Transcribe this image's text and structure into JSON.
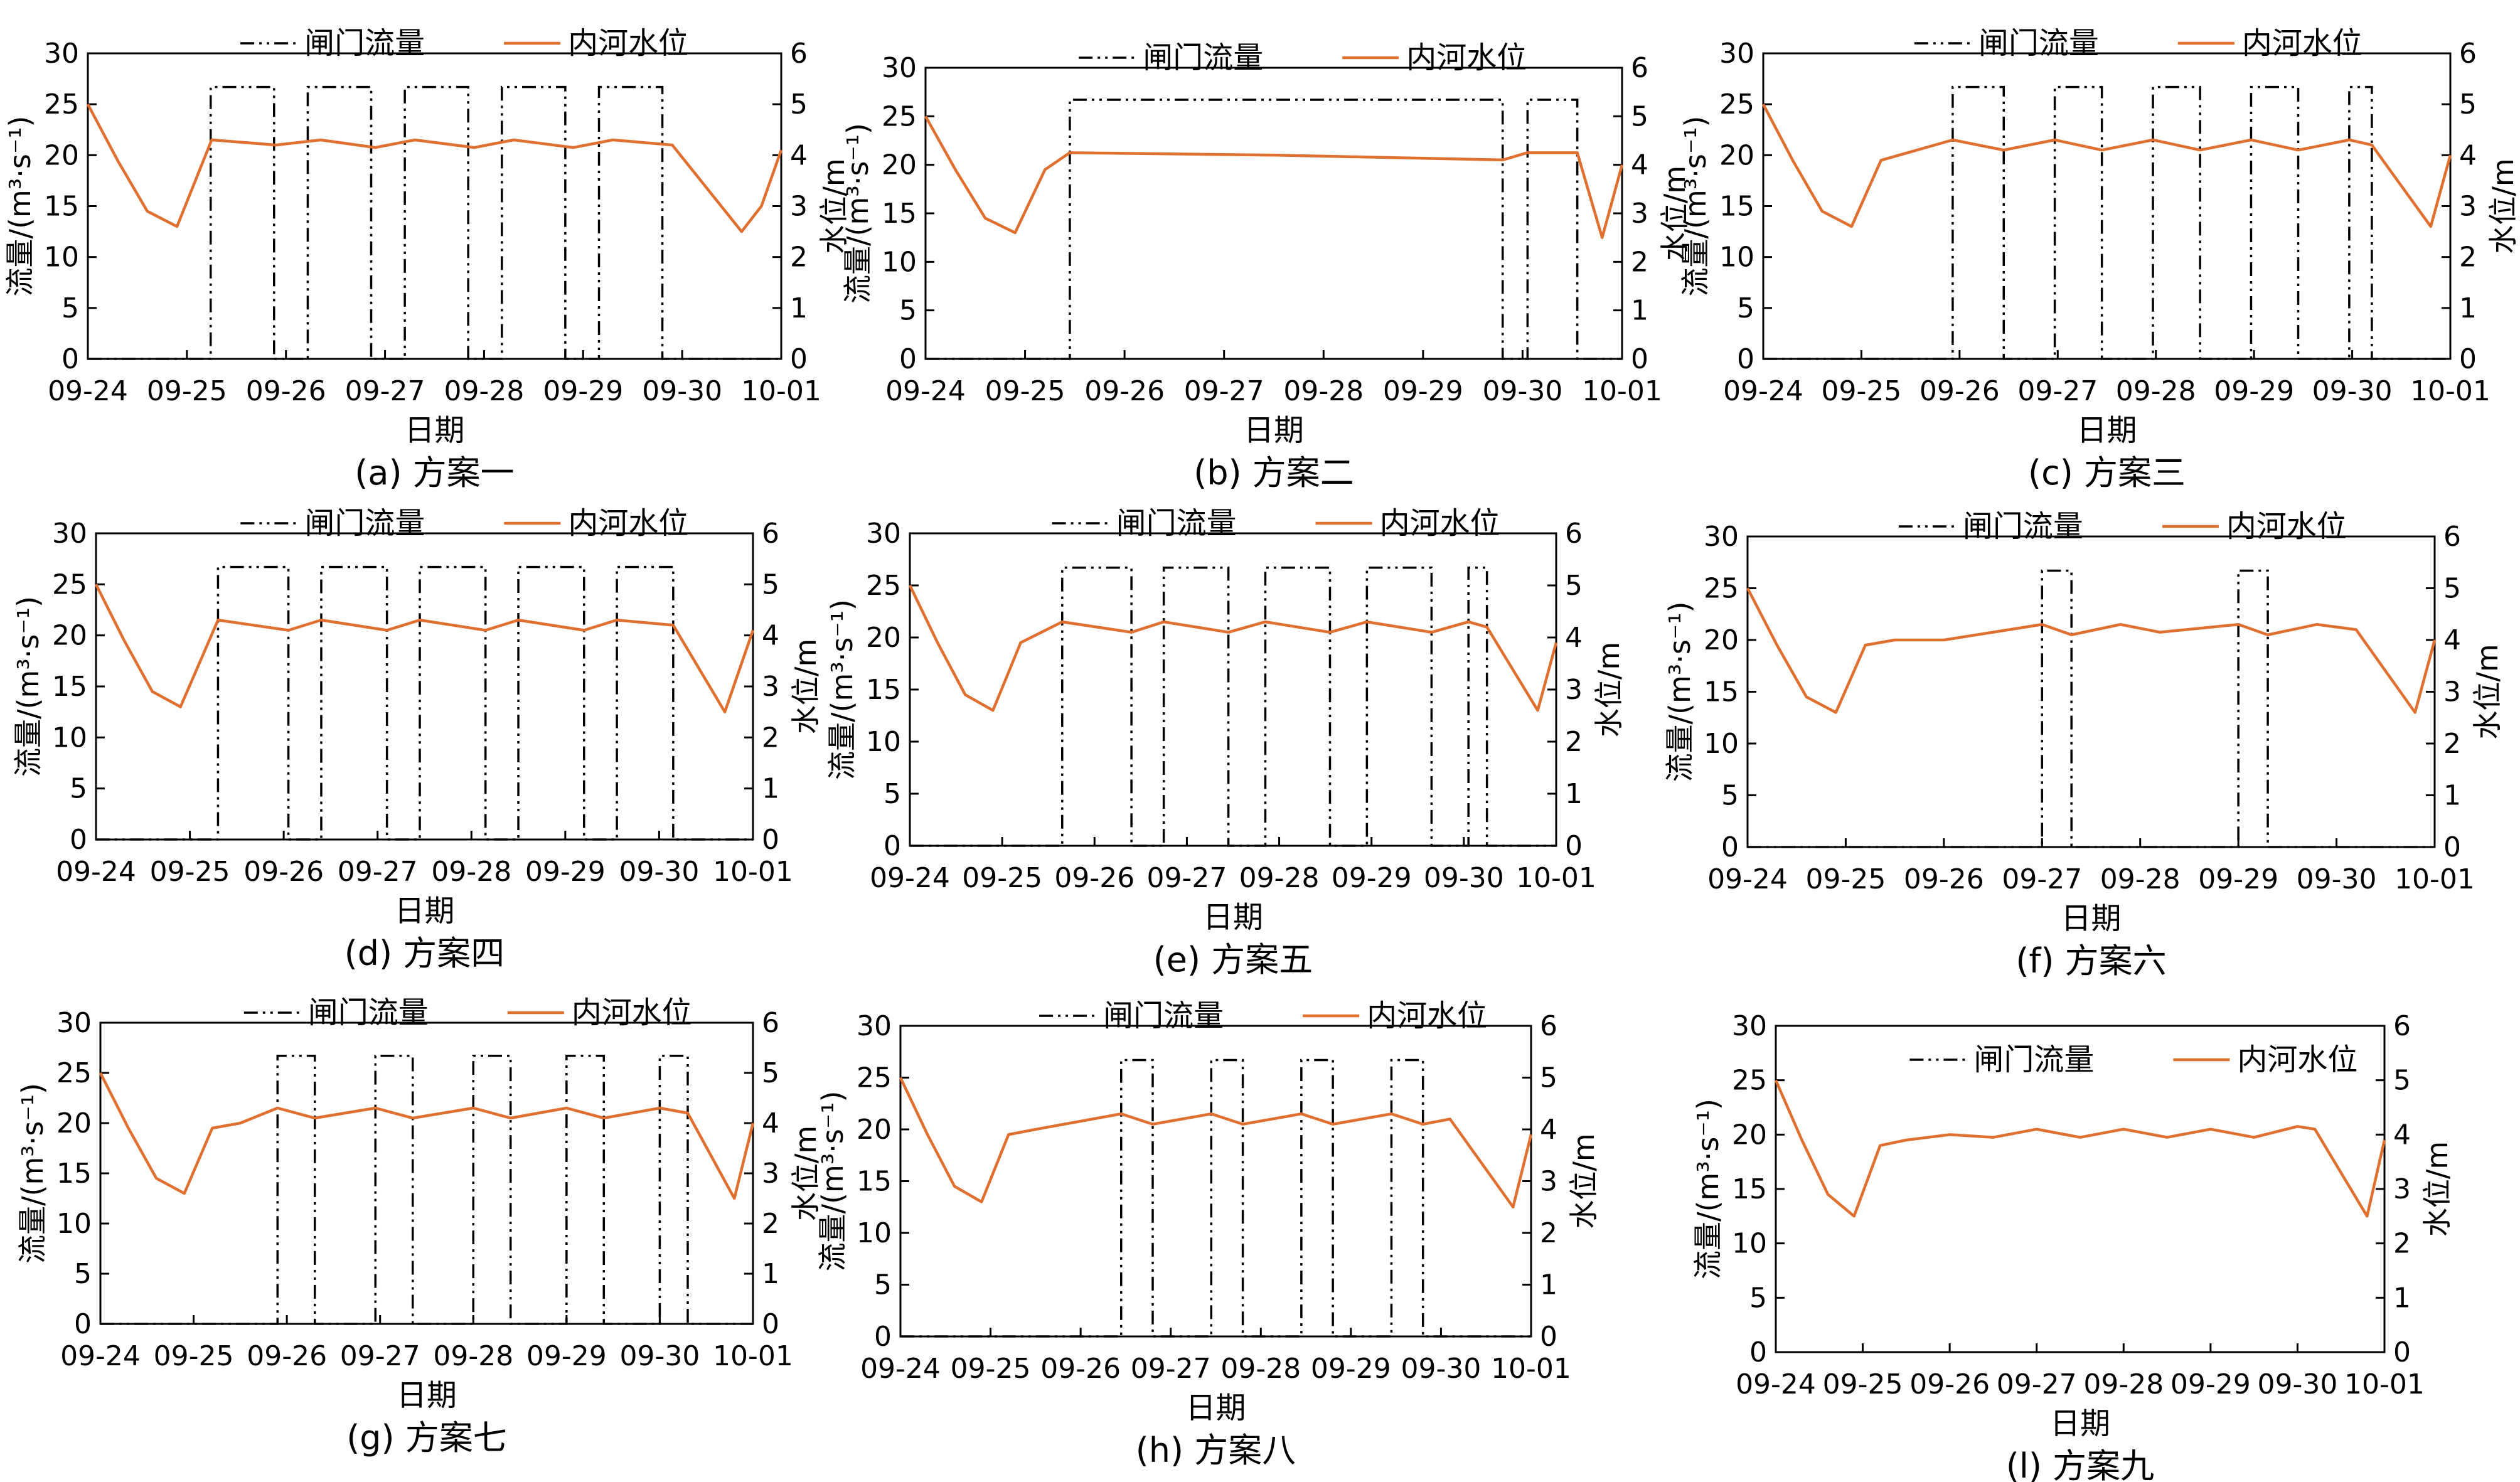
{
  "colors": {
    "water_line": "#E07030",
    "gate_line": "#000000",
    "axis": "#000000"
  },
  "chart_data": [
    {
      "type": "line",
      "caption": "(a) 方案一",
      "legend": [
        "闸门流量",
        "内河水位"
      ],
      "xlabel": "日期",
      "ylabel_left": "流量/(m³·s⁻¹)",
      "ylabel_right": "水位/m",
      "x_ticks": [
        "09-24",
        "09-25",
        "09-26",
        "09-27",
        "09-28",
        "09-29",
        "09-30",
        "10-01"
      ],
      "ylim_left": [
        0,
        30
      ],
      "ylim_right": [
        0,
        6
      ],
      "y_ticks_left": [
        0,
        5,
        10,
        15,
        20,
        25,
        30
      ],
      "y_ticks_right": [
        0,
        1,
        2,
        3,
        4,
        5,
        6
      ],
      "gate_flow": {
        "value": 26.7,
        "intervals": [
          [
            1.24,
            1.88
          ],
          [
            2.22,
            2.86
          ],
          [
            3.2,
            3.84
          ],
          [
            4.18,
            4.82
          ],
          [
            5.16,
            5.8
          ]
        ]
      },
      "water_level": {
        "x": [
          0,
          0.3,
          0.6,
          0.9,
          1.25,
          1.9,
          2.35,
          2.9,
          3.3,
          3.9,
          4.3,
          4.9,
          5.3,
          5.9,
          6.6,
          6.8,
          7.0
        ],
        "y": [
          5.0,
          3.9,
          2.9,
          2.6,
          4.3,
          4.2,
          4.3,
          4.15,
          4.3,
          4.15,
          4.3,
          4.15,
          4.3,
          4.2,
          2.5,
          3.0,
          4.1
        ]
      }
    },
    {
      "type": "line",
      "caption": "(b) 方案二",
      "legend": [
        "闸门流量",
        "内河水位"
      ],
      "xlabel": "日期",
      "ylabel_left": "流量/(m³·s⁻¹)",
      "ylabel_right": "水位/m",
      "x_ticks": [
        "09-24",
        "09-25",
        "09-26",
        "09-27",
        "09-28",
        "09-29",
        "09-30",
        "10-01"
      ],
      "ylim_left": [
        0,
        30
      ],
      "ylim_right": [
        0,
        6
      ],
      "y_ticks_left": [
        0,
        5,
        10,
        15,
        20,
        25,
        30
      ],
      "y_ticks_right": [
        0,
        1,
        2,
        3,
        4,
        5,
        6
      ],
      "gate_flow": {
        "value": 26.7,
        "intervals": [
          [
            1.45,
            5.8
          ],
          [
            6.05,
            6.55
          ]
        ]
      },
      "water_level": {
        "x": [
          0,
          0.3,
          0.6,
          0.9,
          1.2,
          1.45,
          3.5,
          5.8,
          6.05,
          6.55,
          6.8,
          7.0
        ],
        "y": [
          5.0,
          3.9,
          2.9,
          2.6,
          3.9,
          4.25,
          4.2,
          4.1,
          4.25,
          4.25,
          2.5,
          4.0
        ]
      }
    },
    {
      "type": "line",
      "caption": "(c) 方案三",
      "legend": [
        "闸门流量",
        "内河水位"
      ],
      "xlabel": "日期",
      "ylabel_left": "流量/(m³·s⁻¹)",
      "ylabel_right": "水位/m",
      "x_ticks": [
        "09-24",
        "09-25",
        "09-26",
        "09-27",
        "09-28",
        "09-29",
        "09-30",
        "10-01"
      ],
      "ylim_left": [
        0,
        30
      ],
      "ylim_right": [
        0,
        6
      ],
      "y_ticks_left": [
        0,
        5,
        10,
        15,
        20,
        25,
        30
      ],
      "y_ticks_right": [
        0,
        1,
        2,
        3,
        4,
        5,
        6
      ],
      "gate_flow": {
        "value": 26.7,
        "intervals": [
          [
            1.93,
            2.45
          ],
          [
            2.97,
            3.45
          ],
          [
            3.97,
            4.45
          ],
          [
            4.97,
            5.45
          ],
          [
            5.97,
            6.2
          ]
        ]
      },
      "water_level": {
        "x": [
          0,
          0.3,
          0.6,
          0.9,
          1.2,
          1.93,
          2.45,
          2.97,
          3.45,
          3.97,
          4.45,
          4.97,
          5.45,
          5.97,
          6.2,
          6.8,
          7.0
        ],
        "y": [
          5.0,
          3.9,
          2.9,
          2.6,
          3.9,
          4.3,
          4.1,
          4.3,
          4.1,
          4.3,
          4.1,
          4.3,
          4.1,
          4.3,
          4.2,
          2.6,
          4.0
        ]
      }
    },
    {
      "type": "line",
      "caption": "(d) 方案四",
      "legend": [
        "闸门流量",
        "内河水位"
      ],
      "xlabel": "日期",
      "ylabel_left": "流量/(m³·s⁻¹)",
      "ylabel_right": "水位/m",
      "x_ticks": [
        "09-24",
        "09-25",
        "09-26",
        "09-27",
        "09-28",
        "09-29",
        "09-30",
        "10-01"
      ],
      "ylim_left": [
        0,
        30
      ],
      "ylim_right": [
        0,
        6
      ],
      "y_ticks_left": [
        0,
        5,
        10,
        15,
        20,
        25,
        30
      ],
      "y_ticks_right": [
        0,
        1,
        2,
        3,
        4,
        5,
        6
      ],
      "gate_flow": {
        "value": 26.7,
        "intervals": [
          [
            1.3,
            2.05
          ],
          [
            2.4,
            3.1
          ],
          [
            3.45,
            4.15
          ],
          [
            4.5,
            5.2
          ],
          [
            5.55,
            6.15
          ]
        ]
      },
      "water_level": {
        "x": [
          0,
          0.3,
          0.6,
          0.9,
          1.3,
          2.05,
          2.4,
          3.1,
          3.45,
          4.15,
          4.5,
          5.2,
          5.55,
          6.15,
          6.7,
          7.0
        ],
        "y": [
          5.0,
          3.9,
          2.9,
          2.6,
          4.3,
          4.1,
          4.3,
          4.1,
          4.3,
          4.1,
          4.3,
          4.1,
          4.3,
          4.2,
          2.5,
          4.1
        ]
      }
    },
    {
      "type": "line",
      "caption": "(e) 方案五",
      "legend": [
        "闸门流量",
        "内河水位"
      ],
      "xlabel": "日期",
      "ylabel_left": "流量/(m³·s⁻¹)",
      "ylabel_right": "水位/m",
      "x_ticks": [
        "09-24",
        "09-25",
        "09-26",
        "09-27",
        "09-28",
        "09-29",
        "09-30",
        "10-01"
      ],
      "ylim_left": [
        0,
        30
      ],
      "ylim_right": [
        0,
        6
      ],
      "y_ticks_left": [
        0,
        5,
        10,
        15,
        20,
        25,
        30
      ],
      "y_ticks_right": [
        0,
        1,
        2,
        3,
        4,
        5,
        6
      ],
      "gate_flow": {
        "value": 26.7,
        "intervals": [
          [
            1.65,
            2.4
          ],
          [
            2.75,
            3.45
          ],
          [
            3.85,
            4.55
          ],
          [
            4.95,
            5.65
          ],
          [
            6.05,
            6.25
          ]
        ]
      },
      "water_level": {
        "x": [
          0,
          0.3,
          0.6,
          0.9,
          1.2,
          1.65,
          2.4,
          2.75,
          3.45,
          3.85,
          4.55,
          4.95,
          5.65,
          6.05,
          6.25,
          6.8,
          7.0
        ],
        "y": [
          5.0,
          3.9,
          2.9,
          2.6,
          3.9,
          4.3,
          4.1,
          4.3,
          4.1,
          4.3,
          4.1,
          4.3,
          4.1,
          4.3,
          4.2,
          2.6,
          3.9
        ]
      }
    },
    {
      "type": "line",
      "caption": "(f) 方案六",
      "legend": [
        "闸门流量",
        "内河水位"
      ],
      "xlabel": "日期",
      "ylabel_left": "流量/(m³·s⁻¹)",
      "ylabel_right": "水位/m",
      "x_ticks": [
        "09-24",
        "09-25",
        "09-26",
        "09-27",
        "09-28",
        "09-29",
        "09-30",
        "10-01"
      ],
      "ylim_left": [
        0,
        30
      ],
      "ylim_right": [
        0,
        6
      ],
      "y_ticks_left": [
        0,
        5,
        10,
        15,
        20,
        25,
        30
      ],
      "y_ticks_right": [
        0,
        1,
        2,
        3,
        4,
        5,
        6
      ],
      "gate_flow": {
        "value": 26.7,
        "intervals": [
          [
            3.0,
            3.3
          ],
          [
            5.0,
            5.3
          ]
        ]
      },
      "water_level": {
        "x": [
          0,
          0.3,
          0.6,
          0.9,
          1.2,
          1.5,
          2.0,
          3.0,
          3.3,
          3.8,
          4.2,
          5.0,
          5.3,
          5.8,
          6.2,
          6.8,
          7.0
        ],
        "y": [
          5.0,
          3.9,
          2.9,
          2.6,
          3.9,
          4.0,
          4.0,
          4.3,
          4.1,
          4.3,
          4.15,
          4.3,
          4.1,
          4.3,
          4.2,
          2.6,
          4.0
        ]
      }
    },
    {
      "type": "line",
      "caption": "(g) 方案七",
      "legend": [
        "闸门流量",
        "内河水位"
      ],
      "xlabel": "日期",
      "ylabel_left": "流量/(m³·s⁻¹)",
      "ylabel_right": "水位/m",
      "x_ticks": [
        "09-24",
        "09-25",
        "09-26",
        "09-27",
        "09-28",
        "09-29",
        "09-30",
        "10-01"
      ],
      "ylim_left": [
        0,
        30
      ],
      "ylim_right": [
        0,
        6
      ],
      "y_ticks_left": [
        0,
        5,
        10,
        15,
        20,
        25,
        30
      ],
      "y_ticks_right": [
        0,
        1,
        2,
        3,
        4,
        5,
        6
      ],
      "gate_flow": {
        "value": 26.7,
        "intervals": [
          [
            1.9,
            2.3
          ],
          [
            2.95,
            3.35
          ],
          [
            4.0,
            4.4
          ],
          [
            5.0,
            5.4
          ],
          [
            6.0,
            6.3
          ]
        ]
      },
      "water_level": {
        "x": [
          0,
          0.3,
          0.6,
          0.9,
          1.2,
          1.5,
          1.9,
          2.3,
          2.95,
          3.35,
          4.0,
          4.4,
          5.0,
          5.4,
          6.0,
          6.3,
          6.8,
          7.0
        ],
        "y": [
          5.0,
          3.9,
          2.9,
          2.6,
          3.9,
          4.0,
          4.3,
          4.1,
          4.3,
          4.1,
          4.3,
          4.1,
          4.3,
          4.1,
          4.3,
          4.2,
          2.5,
          4.0
        ]
      }
    },
    {
      "type": "line",
      "caption": "(h) 方案八",
      "legend": [
        "闸门流量",
        "内河水位"
      ],
      "xlabel": "日期",
      "ylabel_left": "流量/(m³·s⁻¹)",
      "ylabel_right": "水位/m",
      "x_ticks": [
        "09-24",
        "09-25",
        "09-26",
        "09-27",
        "09-28",
        "09-29",
        "09-30",
        "10-01"
      ],
      "ylim_left": [
        0,
        30
      ],
      "ylim_right": [
        0,
        6
      ],
      "y_ticks_left": [
        0,
        5,
        10,
        15,
        20,
        25,
        30
      ],
      "y_ticks_right": [
        0,
        1,
        2,
        3,
        4,
        5,
        6
      ],
      "gate_flow": {
        "value": 26.7,
        "intervals": [
          [
            2.45,
            2.8
          ],
          [
            3.45,
            3.8
          ],
          [
            4.45,
            4.8
          ],
          [
            5.45,
            5.8
          ]
        ]
      },
      "water_level": {
        "x": [
          0,
          0.3,
          0.6,
          0.9,
          1.2,
          1.5,
          2.45,
          2.8,
          3.45,
          3.8,
          4.45,
          4.8,
          5.45,
          5.8,
          6.1,
          6.8,
          7.0
        ],
        "y": [
          5.0,
          3.9,
          2.9,
          2.6,
          3.9,
          4.0,
          4.3,
          4.1,
          4.3,
          4.1,
          4.3,
          4.1,
          4.3,
          4.1,
          4.2,
          2.5,
          3.9
        ]
      }
    },
    {
      "type": "line",
      "caption": "(l) 方案九",
      "legend": [
        "闸门流量",
        "内河水位"
      ],
      "xlabel": "日期",
      "ylabel_left": "流量/(m³·s⁻¹)",
      "ylabel_right": "水位/m",
      "x_ticks": [
        "09-24",
        "09-25",
        "09-26",
        "09-27",
        "09-28",
        "09-29",
        "09-30",
        "10-01"
      ],
      "ylim_left": [
        0,
        30
      ],
      "ylim_right": [
        0,
        6
      ],
      "y_ticks_left": [
        0,
        5,
        10,
        15,
        20,
        25,
        30
      ],
      "y_ticks_right": [
        0,
        1,
        2,
        3,
        4,
        5,
        6
      ],
      "gate_flow": {
        "value": 0,
        "intervals": []
      },
      "water_level": {
        "x": [
          0,
          0.3,
          0.6,
          0.9,
          1.2,
          1.5,
          2.0,
          2.5,
          3.0,
          3.5,
          4.0,
          4.5,
          5.0,
          5.5,
          6.0,
          6.2,
          6.8,
          7.0
        ],
        "y": [
          5.0,
          3.9,
          2.9,
          2.5,
          3.8,
          3.9,
          4.0,
          3.95,
          4.1,
          3.95,
          4.1,
          3.95,
          4.1,
          3.95,
          4.15,
          4.1,
          2.5,
          3.9
        ]
      }
    }
  ]
}
